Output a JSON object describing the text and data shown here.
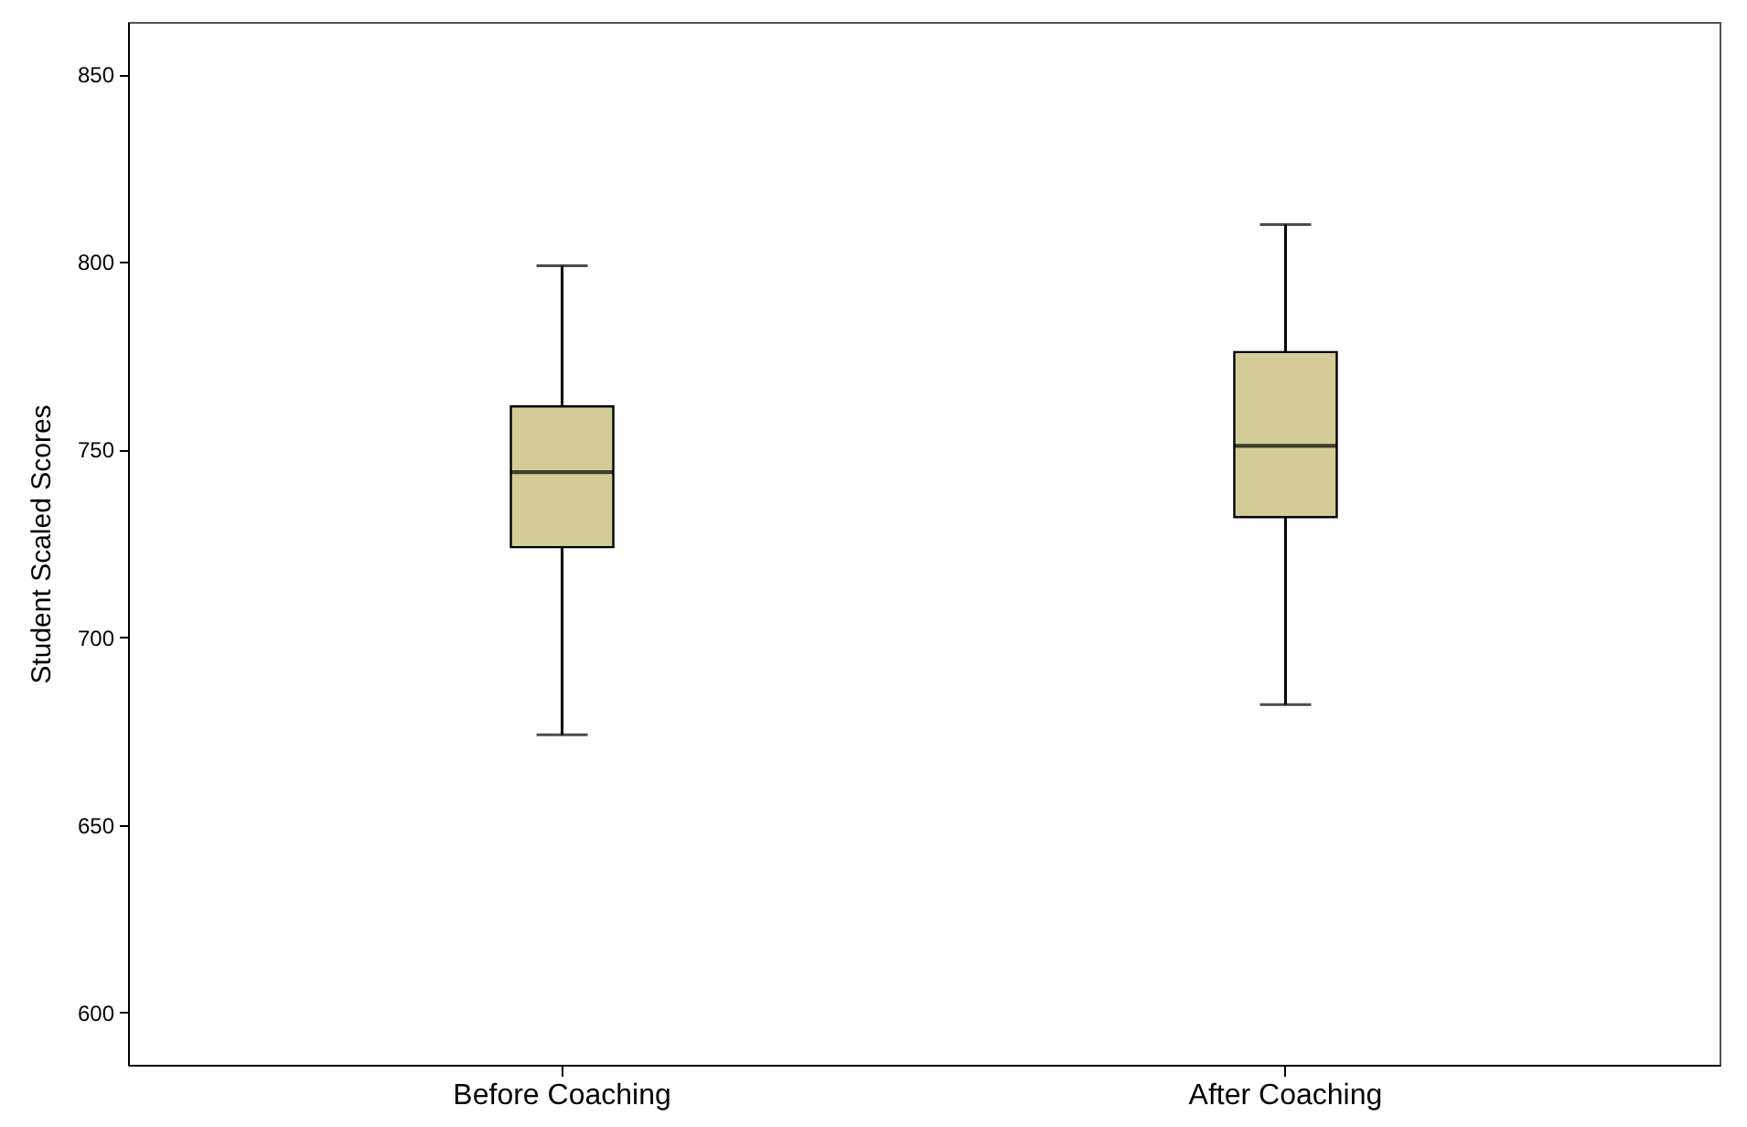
{
  "chart_data": {
    "type": "box",
    "ylabel": "Student Scaled Scores",
    "categories": [
      "Before Coaching",
      "After Coaching"
    ],
    "boxes": [
      {
        "low": 674,
        "q1": 724,
        "median": 744,
        "q3": 761.5,
        "high": 799
      },
      {
        "low": 682,
        "q1": 732,
        "median": 751,
        "q3": 776,
        "high": 810
      }
    ],
    "color": "#d3cc96",
    "ylim": [
      586,
      864
    ],
    "yticks": [
      600,
      650,
      700,
      750,
      800,
      850
    ],
    "grid": false
  }
}
